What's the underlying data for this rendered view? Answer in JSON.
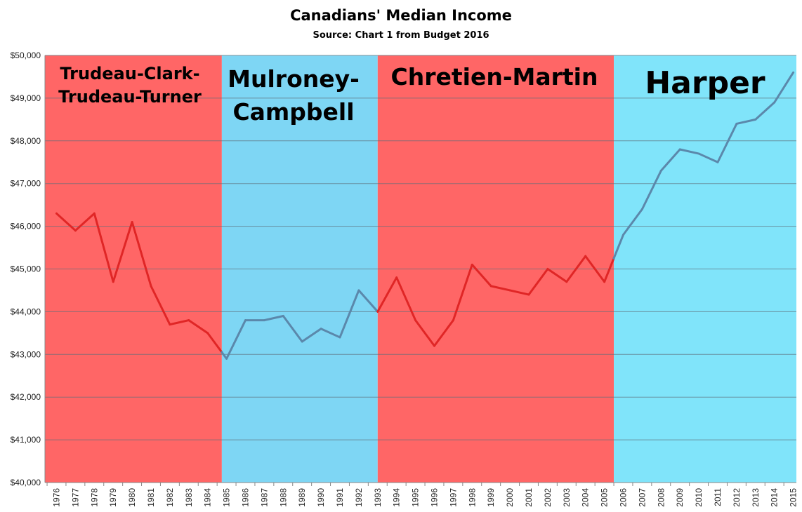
{
  "chart_data": {
    "type": "line",
    "title": "Canadians' Median Income",
    "subtitle": "Source: Chart 1 from Budget 2016",
    "xlabel": "",
    "ylabel": "",
    "ylim": [
      40000,
      50000
    ],
    "yticks": [
      "$40,000",
      "$41,000",
      "$42,000",
      "$43,000",
      "$44,000",
      "$45,000",
      "$46,000",
      "$47,000",
      "$48,000",
      "$49,000",
      "$50,000"
    ],
    "grid": true,
    "x": [
      "1976",
      "1977",
      "1978",
      "1979",
      "1980",
      "1981",
      "1982",
      "1983",
      "1984",
      "1985",
      "1986",
      "1987",
      "1988",
      "1989",
      "1990",
      "1991",
      "1992",
      "1993",
      "1994",
      "1995",
      "1996",
      "1997",
      "1998",
      "1999",
      "2000",
      "2001",
      "2002",
      "2003",
      "2004",
      "2005",
      "2006",
      "2007",
      "2008",
      "2009",
      "2010",
      "2011",
      "2012",
      "2013",
      "2014",
      "2015"
    ],
    "series": [
      {
        "name": "",
        "values": [
          46300,
          45900,
          46300,
          44700,
          46100,
          44600,
          43700,
          43800,
          43500,
          42900,
          43800,
          43800,
          43900,
          43300,
          43600,
          43400,
          44500,
          44000,
          44800,
          43800,
          43200,
          43800,
          45100,
          44600,
          44500,
          44400,
          45000,
          44700,
          45300,
          44700,
          45800,
          46400,
          47300,
          47800,
          47700,
          47500,
          48400,
          48500,
          48900,
          49600
        ]
      }
    ],
    "eras": [
      {
        "lines": [
          "Trudeau-Clark-",
          "Trudeau-Turner"
        ],
        "start": 1976,
        "end": 1984.75,
        "color": "#ff6666",
        "line_color": "#e02626"
      },
      {
        "lines": [
          "Mulroney-",
          "Campbell"
        ],
        "start": 1984.75,
        "end": 1993,
        "color": "#7ed6f4",
        "line_color": "#5b88ab"
      },
      {
        "lines": [
          "Chretien-Martin"
        ],
        "start": 1993,
        "end": 2005.5,
        "color": "#ff6666",
        "line_color": "#e02626"
      },
      {
        "lines": [
          "Harper"
        ],
        "start": 2005.5,
        "end": 2015.5,
        "color": "#80e4fa",
        "line_color": "#5b88ab"
      }
    ]
  }
}
